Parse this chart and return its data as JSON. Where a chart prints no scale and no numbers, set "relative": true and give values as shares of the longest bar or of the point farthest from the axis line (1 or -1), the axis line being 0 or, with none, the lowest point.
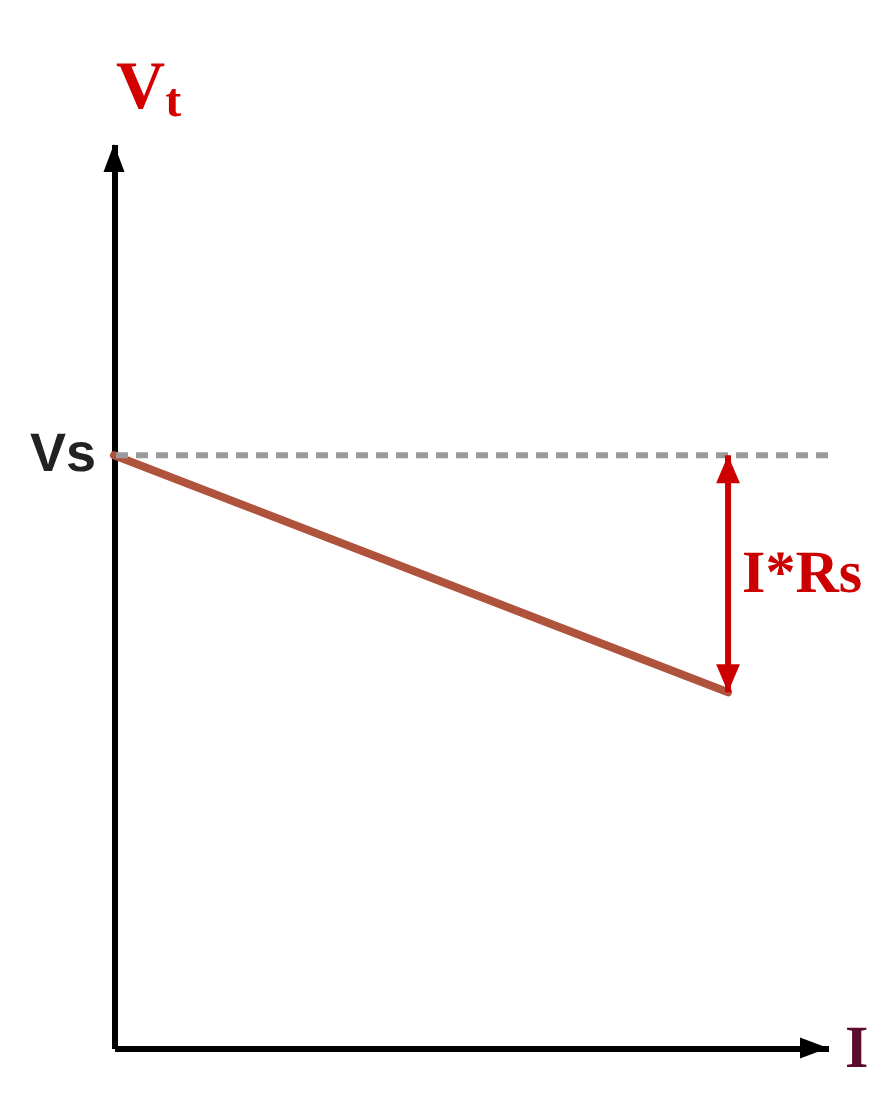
{
  "chart_data": {
    "type": "line",
    "xlabel": "I",
    "ylabel": "V$_{t}$",
    "categories": [
      null,
      null
    ],
    "series": [
      {
        "color": "#b0533c",
        "values": [
          1,
          0.6
        ]
      }
    ],
    "relative": true,
    "ref_lines": [
      {
        "axis": "y",
        "value": 1,
        "label": "Vs",
        "color": "#9a9a9a",
        "line_style": "dashed"
      }
    ],
    "annotations": [
      "I*Rs"
    ]
  }
}
